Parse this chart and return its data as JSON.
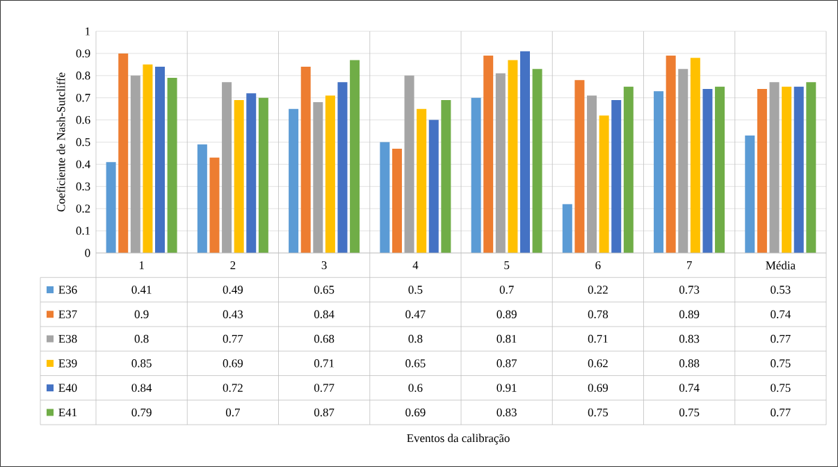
{
  "chart_data": {
    "type": "bar",
    "ylabel": "Coeficiente de Nash-Sutcliffe",
    "annotations": [
      "Eventos da calibração"
    ],
    "categories": [
      "1",
      "2",
      "3",
      "4",
      "5",
      "6",
      "7",
      "Média"
    ],
    "ylim": [
      0,
      1
    ],
    "yticks": [
      0,
      0.1,
      0.2,
      0.3,
      0.4,
      0.5,
      0.6,
      0.7,
      0.8,
      0.9,
      1
    ],
    "grid": "y",
    "legend": "bottom",
    "series": [
      {
        "name": "E36",
        "color": "#5b9bd5",
        "values": [
          0.41,
          0.49,
          0.65,
          0.5,
          0.7,
          0.22,
          0.73,
          0.53
        ],
        "value_labels": [
          "0.41",
          "0.49",
          "0.65",
          "0.5",
          "0.7",
          "0.22",
          "0.73",
          "0.53"
        ]
      },
      {
        "name": "E37",
        "color": "#ed7d31",
        "values": [
          0.9,
          0.43,
          0.84,
          0.47,
          0.89,
          0.78,
          0.89,
          0.74
        ],
        "value_labels": [
          "0.9",
          "0.43",
          "0.84",
          "0.47",
          "0.89",
          "0.78",
          "0.89",
          "0.74"
        ]
      },
      {
        "name": "E38",
        "color": "#a5a5a5",
        "values": [
          0.8,
          0.77,
          0.68,
          0.8,
          0.81,
          0.71,
          0.83,
          0.77
        ],
        "value_labels": [
          "0.8",
          "0.77",
          "0.68",
          "0.8",
          "0.81",
          "0.71",
          "0.83",
          "0.77"
        ]
      },
      {
        "name": "E39",
        "color": "#ffc000",
        "values": [
          0.85,
          0.69,
          0.71,
          0.65,
          0.87,
          0.62,
          0.88,
          0.75
        ],
        "value_labels": [
          "0.85",
          "0.69",
          "0.71",
          "0.65",
          "0.87",
          "0.62",
          "0.88",
          "0.75"
        ]
      },
      {
        "name": "E40",
        "color": "#4472c4",
        "values": [
          0.84,
          0.72,
          0.77,
          0.6,
          0.91,
          0.69,
          0.74,
          0.75
        ],
        "value_labels": [
          "0.84",
          "0.72",
          "0.77",
          "0.6",
          "0.91",
          "0.69",
          "0.74",
          "0.75"
        ]
      },
      {
        "name": "E41",
        "color": "#70ad47",
        "values": [
          0.79,
          0.7,
          0.87,
          0.69,
          0.83,
          0.75,
          0.75,
          0.77
        ],
        "value_labels": [
          "0.79",
          "0.7",
          "0.87",
          "0.69",
          "0.83",
          "0.75",
          "0.75",
          "0.77"
        ]
      }
    ]
  }
}
